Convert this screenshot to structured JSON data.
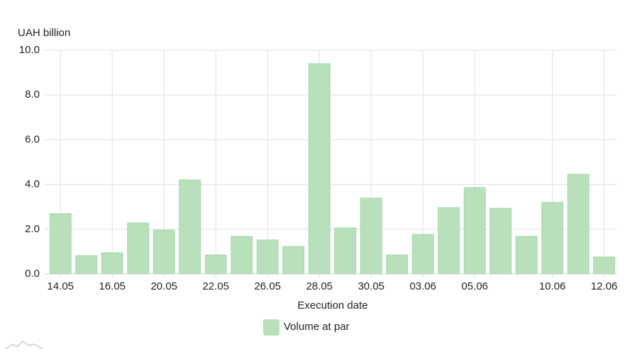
{
  "chart_data": {
    "type": "bar",
    "y_axis_title": "UAH billion",
    "x_axis_title": "Execution date",
    "categories": [
      "14.05",
      null,
      "16.05",
      null,
      "20.05",
      null,
      "22.05",
      null,
      "26.05",
      null,
      "28.05",
      null,
      "30.05",
      null,
      "03.06",
      null,
      "05.06",
      null,
      null,
      "10.06",
      null,
      "12.06"
    ],
    "series": [
      {
        "name": "Volume at par",
        "color": "#b8e0bb",
        "values": [
          2.7,
          0.82,
          0.95,
          2.28,
          1.96,
          4.21,
          0.85,
          1.68,
          1.52,
          1.23,
          9.4,
          2.06,
          3.39,
          0.85,
          1.77,
          2.97,
          3.86,
          2.94,
          1.68,
          3.2,
          4.46,
          0.76
        ]
      }
    ],
    "ylim": [
      0,
      10
    ],
    "yticks": [
      {
        "value": 0,
        "label": "0.0"
      },
      {
        "value": 2,
        "label": "2.0"
      },
      {
        "value": 4,
        "label": "4.0"
      },
      {
        "value": 6,
        "label": "6.0"
      },
      {
        "value": 8,
        "label": "8.0"
      },
      {
        "value": 10,
        "label": "10.0"
      }
    ],
    "grid": true
  }
}
